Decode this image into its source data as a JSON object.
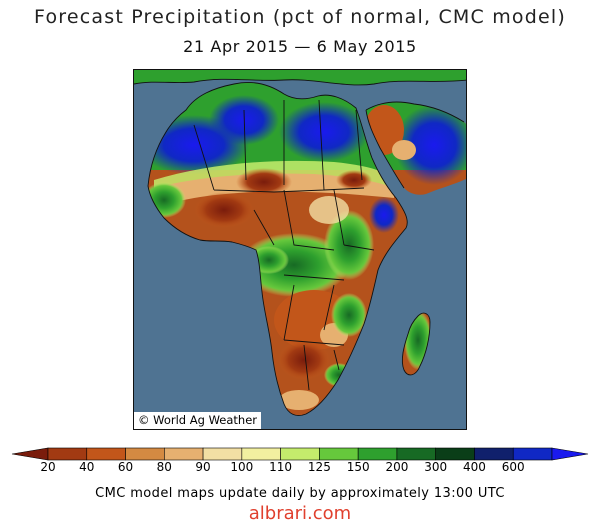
{
  "title": "Forecast Precipitation (pct of normal, CMC model)",
  "subtitle": "21 Apr 2015 — 6 May 2015",
  "copyright": "© World Ag Weather",
  "footer": "CMC model maps update daily by approximately 13:00 UTC",
  "watermark": "albrari.com",
  "legend": {
    "labels": [
      "20",
      "40",
      "60",
      "80",
      "90",
      "100",
      "110",
      "125",
      "150",
      "200",
      "300",
      "400",
      "600"
    ],
    "colors": [
      "#7a1c0c",
      "#a23a12",
      "#c2561a",
      "#d48a42",
      "#e6b070",
      "#f2dfa4",
      "#f2f0a0",
      "#c4ec6c",
      "#66c83c",
      "#2ea02e",
      "#176a24",
      "#0a3e18",
      "#10206c",
      "#1028c4",
      "#1a1aee"
    ]
  },
  "colors": {
    "ocean": "#4f7392",
    "dry_dark": "#7a1c0c",
    "dry": "#a8441a",
    "normal": "#f2dfa4",
    "wet": "#2ea02e",
    "very_wet": "#1a1aee"
  }
}
